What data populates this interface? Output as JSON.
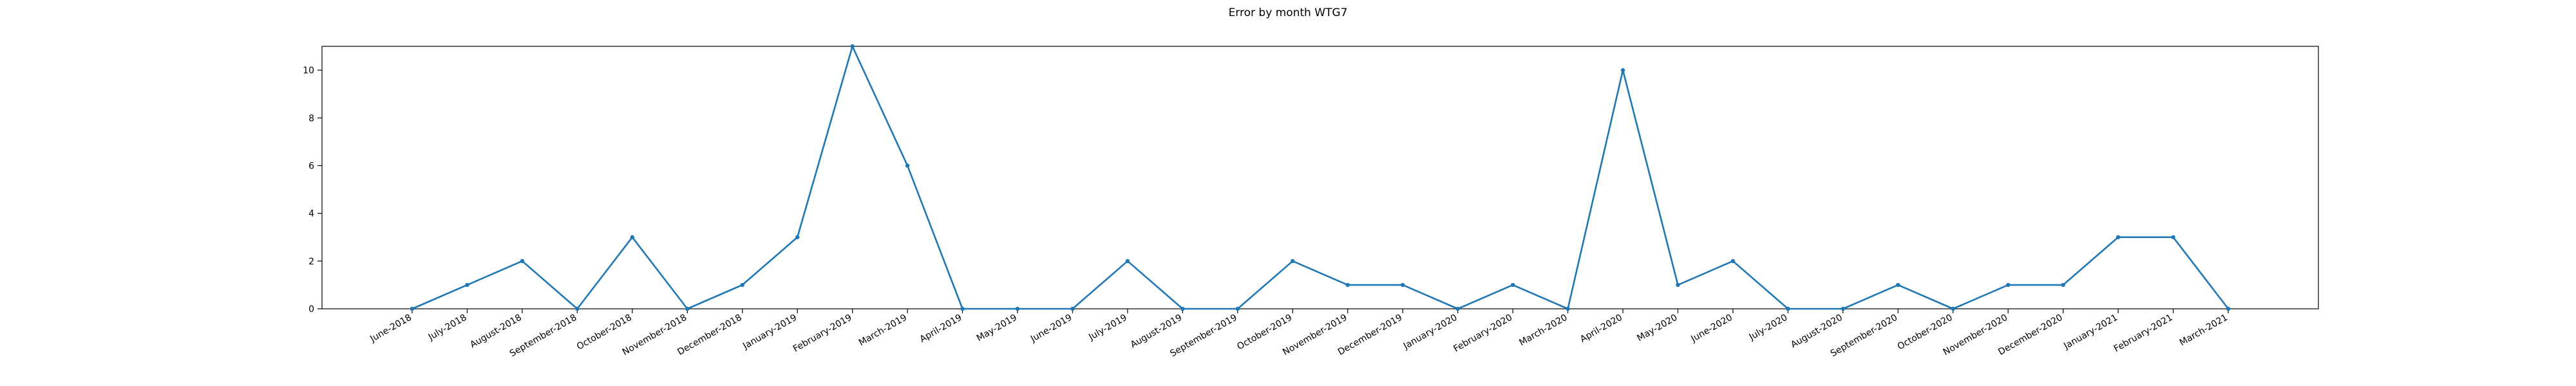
{
  "chart_data": {
    "type": "line",
    "title": "Error by month WTG7",
    "xlabel": "",
    "ylabel": "",
    "ylim": [
      0,
      11
    ],
    "yticks": [
      0,
      2,
      4,
      6,
      8,
      10
    ],
    "grid": false,
    "legend": "none",
    "colors": {
      "series": "#1f77b4",
      "axis": "#000000"
    },
    "categories": [
      "June-2018",
      "July-2018",
      "August-2018",
      "September-2018",
      "October-2018",
      "November-2018",
      "December-2018",
      "January-2019",
      "February-2019",
      "March-2019",
      "April-2019",
      "May-2019",
      "June-2019",
      "July-2019",
      "August-2019",
      "September-2019",
      "October-2019",
      "November-2019",
      "December-2019",
      "January-2020",
      "February-2020",
      "March-2020",
      "April-2020",
      "May-2020",
      "June-2020",
      "July-2020",
      "August-2020",
      "September-2020",
      "October-2020",
      "November-2020",
      "December-2020",
      "January-2021",
      "February-2021",
      "March-2021"
    ],
    "series": [
      {
        "values": [
          0,
          1,
          2,
          0,
          3,
          0,
          1,
          3,
          11,
          6,
          0,
          0,
          0,
          2,
          0,
          0,
          2,
          1,
          1,
          0,
          1,
          0,
          10,
          1,
          2,
          0,
          0,
          1,
          0,
          1,
          1,
          3,
          3,
          0
        ]
      }
    ]
  }
}
